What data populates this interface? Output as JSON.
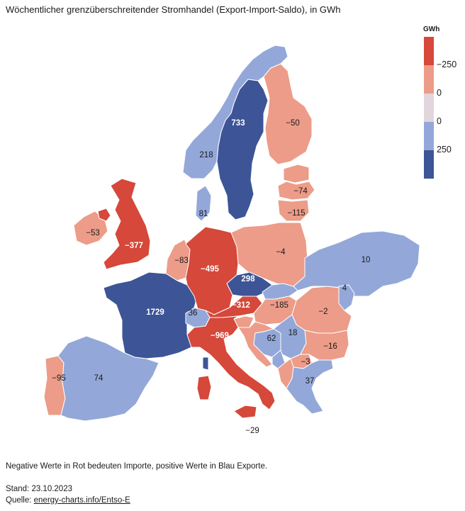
{
  "title": "Wöchentlicher grenzüberschreitender Stromhandel (Export-Import-Saldo), in GWh",
  "legend": {
    "title": "GWh",
    "colors": [
      "#d5483a",
      "#ec9c88",
      "#e2d5dc",
      "#93a8d9",
      "#3d5596"
    ],
    "labels": [
      "−250",
      "0",
      "0",
      "250"
    ]
  },
  "countries": [
    {
      "id": "norway",
      "name": "Norwegen",
      "value": "218",
      "color": "#93a8d9",
      "dark": false
    },
    {
      "id": "sweden",
      "name": "Schweden",
      "value": "733",
      "color": "#3d5596",
      "dark": true
    },
    {
      "id": "finland",
      "name": "Finnland",
      "value": "−50",
      "color": "#ec9c88",
      "dark": false
    },
    {
      "id": "estonia",
      "name": "Estland",
      "value": "",
      "color": "#ec9c88",
      "dark": false
    },
    {
      "id": "latvia",
      "name": "Lettland",
      "value": "−74",
      "color": "#ec9c88",
      "dark": false
    },
    {
      "id": "lithuania",
      "name": "Litauen",
      "value": "−115",
      "color": "#ec9c88",
      "dark": false
    },
    {
      "id": "denmark",
      "name": "Dänemark",
      "value": "81",
      "color": "#93a8d9",
      "dark": false
    },
    {
      "id": "uk",
      "name": "Großbritannien",
      "value": "−377",
      "color": "#d5483a",
      "dark": true
    },
    {
      "id": "ireland",
      "name": "Irland",
      "value": "−53",
      "color": "#ec9c88",
      "dark": false
    },
    {
      "id": "nireland",
      "name": "Nordirland",
      "value": "",
      "color": "#d5483a",
      "dark": true
    },
    {
      "id": "benelux",
      "name": "Niederlande/Belgien",
      "value": "−83",
      "color": "#ec9c88",
      "dark": false
    },
    {
      "id": "germany",
      "name": "Deutschland",
      "value": "−495",
      "color": "#d5483a",
      "dark": true
    },
    {
      "id": "poland",
      "name": "Polen",
      "value": "−4",
      "color": "#ec9c88",
      "dark": false
    },
    {
      "id": "ukraine",
      "name": "Ukraine",
      "value": "10",
      "color": "#93a8d9",
      "dark": false
    },
    {
      "id": "moldova",
      "name": "Moldau",
      "value": "4",
      "color": "#93a8d9",
      "dark": false
    },
    {
      "id": "czech",
      "name": "Tschechien",
      "value": "298",
      "color": "#3d5596",
      "dark": true
    },
    {
      "id": "slovakia",
      "name": "Slowakei",
      "value": "",
      "color": "#93a8d9",
      "dark": false
    },
    {
      "id": "austria",
      "name": "Österreich",
      "value": "−312",
      "color": "#d5483a",
      "dark": true
    },
    {
      "id": "hungary",
      "name": "Ungarn",
      "value": "−185",
      "color": "#ec9c88",
      "dark": false
    },
    {
      "id": "romania",
      "name": "Rumänien",
      "value": "−2",
      "color": "#ec9c88",
      "dark": false
    },
    {
      "id": "france",
      "name": "Frankreich",
      "value": "1729",
      "color": "#3d5596",
      "dark": true
    },
    {
      "id": "switzerland",
      "name": "Schweiz",
      "value": "36",
      "color": "#93a8d9",
      "dark": false
    },
    {
      "id": "italy",
      "name": "Italien",
      "value": "−969",
      "color": "#d5483a",
      "dark": true
    },
    {
      "id": "sardinia",
      "name": "Sardinien",
      "value": "",
      "color": "#d5483a",
      "dark": true
    },
    {
      "id": "corsica",
      "name": "Korsika",
      "value": "",
      "color": "#3d5596",
      "dark": true
    },
    {
      "id": "sicily",
      "name": "Sizilien",
      "value": "",
      "color": "#d5483a",
      "dark": true
    },
    {
      "id": "slovenia",
      "name": "Slowenien",
      "value": "",
      "color": "#ec9c88",
      "dark": false
    },
    {
      "id": "croatia",
      "name": "Kroatien",
      "value": "",
      "color": "#ec9c88",
      "dark": false
    },
    {
      "id": "bosnia",
      "name": "Bosnien-Herzegowina",
      "value": "62",
      "color": "#93a8d9",
      "dark": false
    },
    {
      "id": "serbia",
      "name": "Serbien",
      "value": "18",
      "color": "#93a8d9",
      "dark": false
    },
    {
      "id": "montenegro",
      "name": "Montenegro",
      "value": "",
      "color": "#93a8d9",
      "dark": false
    },
    {
      "id": "bulgaria",
      "name": "Bulgarien",
      "value": "−16",
      "color": "#ec9c88",
      "dark": false
    },
    {
      "id": "macedonia",
      "name": "Nordmazedonien",
      "value": "−3",
      "color": "#ec9c88",
      "dark": false
    },
    {
      "id": "albania",
      "name": "Albanien",
      "value": "",
      "color": "#ec9c88",
      "dark": false
    },
    {
      "id": "greece",
      "name": "Griechenland",
      "value": "37",
      "color": "#93a8d9",
      "dark": false
    },
    {
      "id": "spain",
      "name": "Spanien",
      "value": "74",
      "color": "#93a8d9",
      "dark": false
    },
    {
      "id": "portugal",
      "name": "Portugal",
      "value": "−95",
      "color": "#ec9c88",
      "dark": false
    }
  ],
  "outside_labels": [
    {
      "id": "sicily-label",
      "value": "−29"
    }
  ],
  "footer": {
    "note": "Negative Werte in Rot bedeuten Importe, positive Werte in Blau Exporte.",
    "date": "Stand: 23.10.2023",
    "source_prefix": "Quelle: ",
    "source_link": "energy-charts.info/Entso-E"
  }
}
